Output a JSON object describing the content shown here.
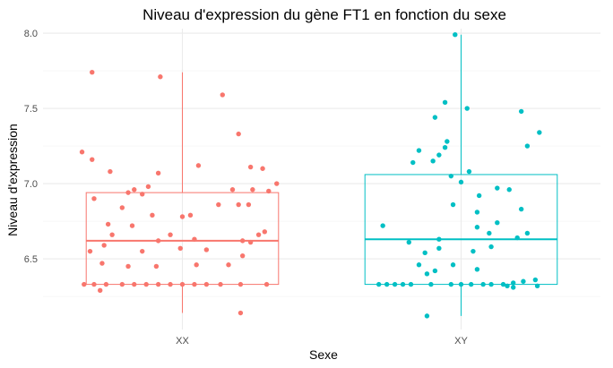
{
  "chart_data": {
    "type": "box",
    "title": "Niveau d'expression du gène FT1 en fonction du sexe",
    "xlabel": "Sexe",
    "ylabel": "Niveau d'expression",
    "categories": [
      "XX",
      "XY"
    ],
    "ylim": [
      6.03,
      8.03
    ],
    "yticks": [
      6.5,
      7.0,
      7.5,
      8.0
    ],
    "ytick_labels": [
      "6.5",
      "7.0",
      "7.5",
      "8.0"
    ],
    "grid": true,
    "legend": "none",
    "series": [
      {
        "category": "XX",
        "color": "#F8766D",
        "box": {
          "min": 6.14,
          "q1": 6.33,
          "median": 6.62,
          "q3": 6.94,
          "max": 7.74
        },
        "points": [
          [
            -0.45,
            7.74
          ],
          [
            -0.11,
            7.71
          ],
          [
            0.2,
            7.59
          ],
          [
            0.28,
            7.33
          ],
          [
            -0.5,
            7.21
          ],
          [
            -0.45,
            7.16
          ],
          [
            0.08,
            7.12
          ],
          [
            0.34,
            7.11
          ],
          [
            -0.36,
            7.08
          ],
          [
            -0.12,
            7.07
          ],
          [
            0.4,
            7.1
          ],
          [
            -0.17,
            6.98
          ],
          [
            -0.24,
            6.96
          ],
          [
            -0.27,
            6.94
          ],
          [
            -0.2,
            6.93
          ],
          [
            0.25,
            6.96
          ],
          [
            0.35,
            6.96
          ],
          [
            0.47,
            7.0
          ],
          [
            0.43,
            6.95
          ],
          [
            -0.44,
            6.9
          ],
          [
            -0.3,
            6.84
          ],
          [
            0.28,
            6.86
          ],
          [
            0.33,
            6.86
          ],
          [
            -0.15,
            6.79
          ],
          [
            0.18,
            6.86
          ],
          [
            0.04,
            6.79
          ],
          [
            -0.37,
            6.73
          ],
          [
            -0.25,
            6.72
          ],
          [
            -0.35,
            6.66
          ],
          [
            0.0,
            6.78
          ],
          [
            -0.06,
            6.66
          ],
          [
            0.41,
            6.68
          ],
          [
            0.38,
            6.66
          ],
          [
            -0.12,
            6.62
          ],
          [
            0.06,
            6.63
          ],
          [
            0.3,
            6.62
          ],
          [
            -0.39,
            6.59
          ],
          [
            0.34,
            6.61
          ],
          [
            0.12,
            6.56
          ],
          [
            -0.46,
            6.55
          ],
          [
            -0.2,
            6.55
          ],
          [
            -0.01,
            6.57
          ],
          [
            0.3,
            6.52
          ],
          [
            -0.4,
            6.47
          ],
          [
            0.23,
            6.46
          ],
          [
            0.07,
            6.46
          ],
          [
            -0.27,
            6.45
          ],
          [
            -0.13,
            6.45
          ],
          [
            -0.49,
            6.33
          ],
          [
            -0.44,
            6.33
          ],
          [
            -0.38,
            6.33
          ],
          [
            -0.3,
            6.33
          ],
          [
            -0.24,
            6.33
          ],
          [
            -0.18,
            6.33
          ],
          [
            -0.12,
            6.33
          ],
          [
            -0.06,
            6.33
          ],
          [
            0.0,
            6.33
          ],
          [
            0.06,
            6.33
          ],
          [
            0.12,
            6.33
          ],
          [
            0.19,
            6.33
          ],
          [
            0.29,
            6.33
          ],
          [
            0.42,
            6.33
          ],
          [
            -0.41,
            6.29
          ],
          [
            0.29,
            6.14
          ]
        ]
      },
      {
        "category": "XY",
        "color": "#00BFC4",
        "box": {
          "min": 6.12,
          "q1": 6.33,
          "median": 6.63,
          "q3": 7.06,
          "max": 7.99
        },
        "points": [
          [
            -0.03,
            7.99
          ],
          [
            -0.08,
            7.54
          ],
          [
            0.03,
            7.5
          ],
          [
            -0.13,
            7.44
          ],
          [
            0.3,
            7.48
          ],
          [
            0.39,
            7.34
          ],
          [
            -0.07,
            7.28
          ],
          [
            -0.08,
            7.24
          ],
          [
            0.33,
            7.25
          ],
          [
            -0.21,
            7.22
          ],
          [
            -0.11,
            7.19
          ],
          [
            -0.14,
            7.15
          ],
          [
            -0.24,
            7.14
          ],
          [
            0.04,
            7.08
          ],
          [
            -0.05,
            7.05
          ],
          [
            0.0,
            7.01
          ],
          [
            0.18,
            6.97
          ],
          [
            0.24,
            6.96
          ],
          [
            0.09,
            6.92
          ],
          [
            -0.04,
            6.86
          ],
          [
            0.08,
            6.81
          ],
          [
            0.3,
            6.83
          ],
          [
            0.18,
            6.74
          ],
          [
            0.08,
            6.71
          ],
          [
            -0.39,
            6.72
          ],
          [
            0.14,
            6.67
          ],
          [
            0.33,
            6.67
          ],
          [
            -0.11,
            6.63
          ],
          [
            0.28,
            6.64
          ],
          [
            -0.26,
            6.61
          ],
          [
            0.15,
            6.58
          ],
          [
            -0.11,
            6.57
          ],
          [
            0.06,
            6.55
          ],
          [
            -0.18,
            6.54
          ],
          [
            -0.21,
            6.46
          ],
          [
            -0.04,
            6.46
          ],
          [
            -0.13,
            6.42
          ],
          [
            -0.17,
            6.4
          ],
          [
            0.08,
            6.43
          ],
          [
            -0.41,
            6.33
          ],
          [
            -0.37,
            6.33
          ],
          [
            -0.33,
            6.33
          ],
          [
            -0.29,
            6.33
          ],
          [
            -0.25,
            6.33
          ],
          [
            -0.15,
            6.33
          ],
          [
            -0.05,
            6.33
          ],
          [
            0.0,
            6.33
          ],
          [
            0.05,
            6.33
          ],
          [
            0.11,
            6.33
          ],
          [
            0.15,
            6.33
          ],
          [
            0.21,
            6.33
          ],
          [
            0.26,
            6.34
          ],
          [
            0.31,
            6.35
          ],
          [
            0.37,
            6.36
          ],
          [
            0.38,
            6.32
          ],
          [
            0.23,
            6.32
          ],
          [
            0.26,
            6.31
          ],
          [
            -0.17,
            6.12
          ]
        ]
      }
    ]
  }
}
